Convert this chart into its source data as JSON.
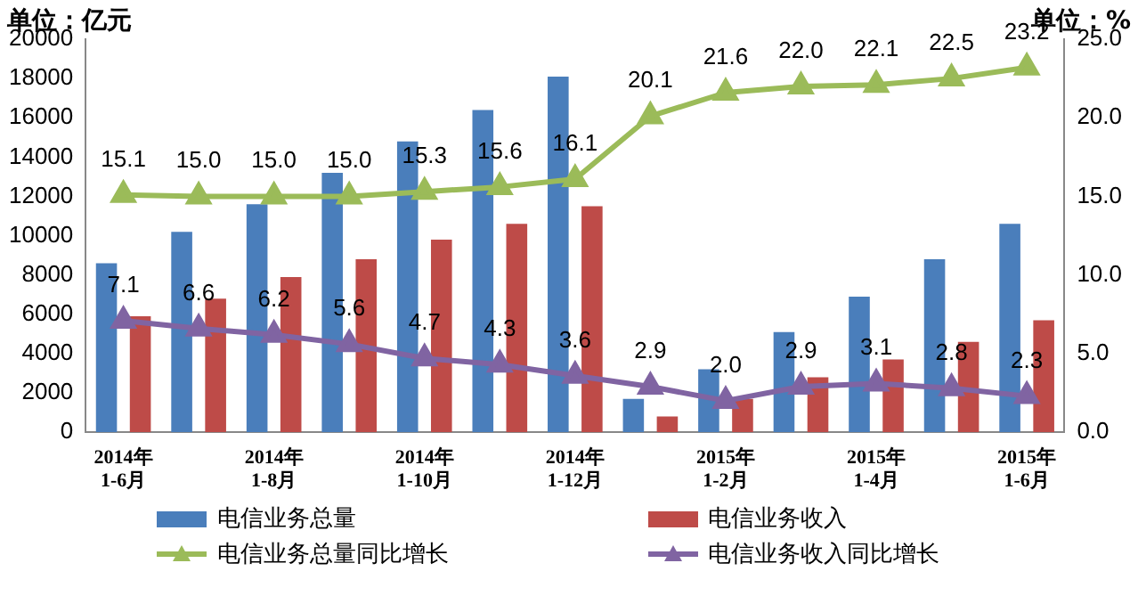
{
  "chart_data": {
    "type": "bar",
    "ylabel": "单位：亿元",
    "y2label": "单位：%",
    "categories": [
      "2014年\n1-6月",
      null,
      "2014年\n1-8月",
      null,
      "2014年\n1-10月",
      null,
      "2014年\n1-12月",
      null,
      "2015年\n1-2月",
      null,
      "2015年\n1-4月",
      null,
      "2015年\n1-6月"
    ],
    "series": [
      {
        "name": "电信业务总量",
        "color": "#4a7ebb",
        "values": [
          8600,
          10200,
          11600,
          13200,
          14800,
          16400,
          18100,
          1700,
          3200,
          5100,
          6900,
          8800,
          10600
        ]
      },
      {
        "name": "电信业务收入",
        "color": "#be4b48",
        "values": [
          5900,
          6800,
          7900,
          8800,
          9800,
          10600,
          11500,
          800,
          1700,
          2800,
          3700,
          4600,
          5700
        ]
      },
      {
        "name": "电信业务总量同比增长",
        "type": "line",
        "axis": "y2",
        "color": "#9bbb59",
        "values": [
          15.1,
          15.0,
          15.0,
          15.0,
          15.3,
          15.6,
          16.1,
          20.1,
          21.6,
          22.0,
          22.1,
          22.5,
          23.2
        ],
        "value_labels": [
          "15.1",
          "15.0",
          "15.0",
          "15.0",
          "15.3",
          "15.6",
          "16.1",
          "20.1",
          "21.6",
          "22.0",
          "22.1",
          "22.5",
          "23.2"
        ]
      },
      {
        "name": "电信业务收入同比增长",
        "type": "line",
        "axis": "y2",
        "color": "#8064a2",
        "values": [
          7.1,
          6.6,
          6.2,
          5.6,
          4.7,
          4.3,
          3.6,
          2.9,
          2.0,
          2.9,
          3.1,
          2.8,
          2.3
        ],
        "value_labels": [
          "7.1",
          "6.6",
          "6.2",
          "5.6",
          "4.7",
          "4.3",
          "3.6",
          "2.9",
          "2.0",
          "2.9",
          "3.1",
          "2.8",
          "2.3"
        ]
      }
    ],
    "ylim": [
      0,
      20000
    ],
    "yticks": [
      0,
      2000,
      4000,
      6000,
      8000,
      10000,
      12000,
      14000,
      16000,
      18000,
      20000
    ],
    "y2lim": [
      0,
      25
    ],
    "y2ticks": [
      {
        "value": 0,
        "label": "0.0"
      },
      {
        "value": 5,
        "label": "5.0"
      },
      {
        "value": 10,
        "label": "10.0"
      },
      {
        "value": 15,
        "label": "15.0"
      },
      {
        "value": 20,
        "label": "20.0"
      },
      {
        "value": 25,
        "label": "25.0"
      }
    ],
    "grid": false,
    "legend": "bottom",
    "marker": "triangle",
    "line_style": "solid"
  }
}
